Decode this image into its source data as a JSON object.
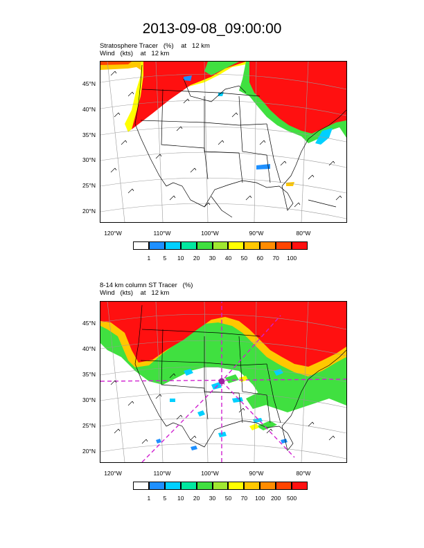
{
  "title": "2013-09-08_09:00:00",
  "panels": [
    {
      "subtitle_line1": "Stratosphere Tracer   (%)    at   12 km",
      "subtitle_line2": "Wind   (kts)    at   12 km",
      "lat_labels": [
        "45°N",
        "40°N",
        "35°N",
        "30°N",
        "25°N",
        "20°N"
      ],
      "lon_labels": [
        "120°W",
        "110°W",
        "100°W",
        "90°W",
        "80°W"
      ],
      "colorbar_labels": [
        "1",
        "5",
        "10",
        "20",
        "30",
        "40",
        "50",
        "60",
        "70",
        "100"
      ],
      "colorbar_colors": [
        "#ffffff",
        "#1e90ff",
        "#00d0ff",
        "#00e8a0",
        "#40e040",
        "#a0e830",
        "#ffff00",
        "#ffc800",
        "#ff8c00",
        "#ff4500",
        "#ff1010"
      ]
    },
    {
      "subtitle_line1": "8-14 km column ST Tracer   (%)",
      "subtitle_line2": "Wind   (kts)    at   12 km",
      "lat_labels": [
        "45°N",
        "40°N",
        "35°N",
        "30°N",
        "25°N",
        "20°N"
      ],
      "lon_labels": [
        "120°W",
        "110°W",
        "100°W",
        "90°W",
        "80°W"
      ],
      "colorbar_labels": [
        "1",
        "5",
        "10",
        "20",
        "30",
        "50",
        "70",
        "100",
        "200",
        "500"
      ],
      "colorbar_colors": [
        "#ffffff",
        "#1e90ff",
        "#00d0ff",
        "#00e8a0",
        "#40e040",
        "#a0e830",
        "#ffff00",
        "#ffc800",
        "#ff8c00",
        "#ff4500",
        "#ff1010"
      ]
    }
  ]
}
